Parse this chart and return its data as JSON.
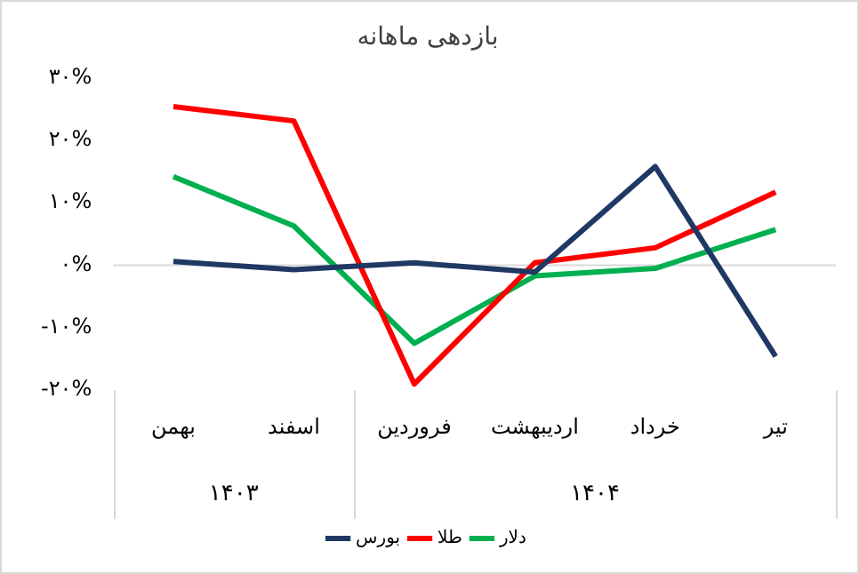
{
  "chart_data": {
    "type": "line",
    "title": "بازدهی ماهانه",
    "categories": [
      "بهمن",
      "اسفند",
      "فروردین",
      "اردیبهشت",
      "خرداد",
      "تیر"
    ],
    "series": [
      {
        "name": "بورس",
        "color": "#203864",
        "values": [
          0.6,
          -0.7,
          0.4,
          -1.1,
          15.8,
          -14.6
        ]
      },
      {
        "name": "طلا",
        "color": "#ff0000",
        "values": [
          25.4,
          23.1,
          -19.0,
          0.4,
          2.8,
          11.7
        ]
      },
      {
        "name": "دلار",
        "color": "#00b050",
        "values": [
          14.2,
          6.3,
          -12.5,
          -1.7,
          -0.5,
          5.7
        ]
      }
    ],
    "ylim": [
      -20,
      30
    ],
    "yticks": [
      {
        "value": -20,
        "label": "-۲۰%"
      },
      {
        "value": -10,
        "label": "-۱۰%"
      },
      {
        "value": 0,
        "label": "۰%"
      },
      {
        "value": 10,
        "label": "۱۰%"
      },
      {
        "value": 20,
        "label": "۲۰%"
      },
      {
        "value": 30,
        "label": "۳۰%"
      }
    ],
    "ref_lines": [
      {
        "axis": "y",
        "value": 0,
        "color": "#d9d9d9"
      }
    ],
    "annotations": [
      "۱۴۰۳",
      "۱۴۰۴"
    ],
    "grid": false,
    "legend": "bottom",
    "marker": "none",
    "line_style": "solid"
  }
}
